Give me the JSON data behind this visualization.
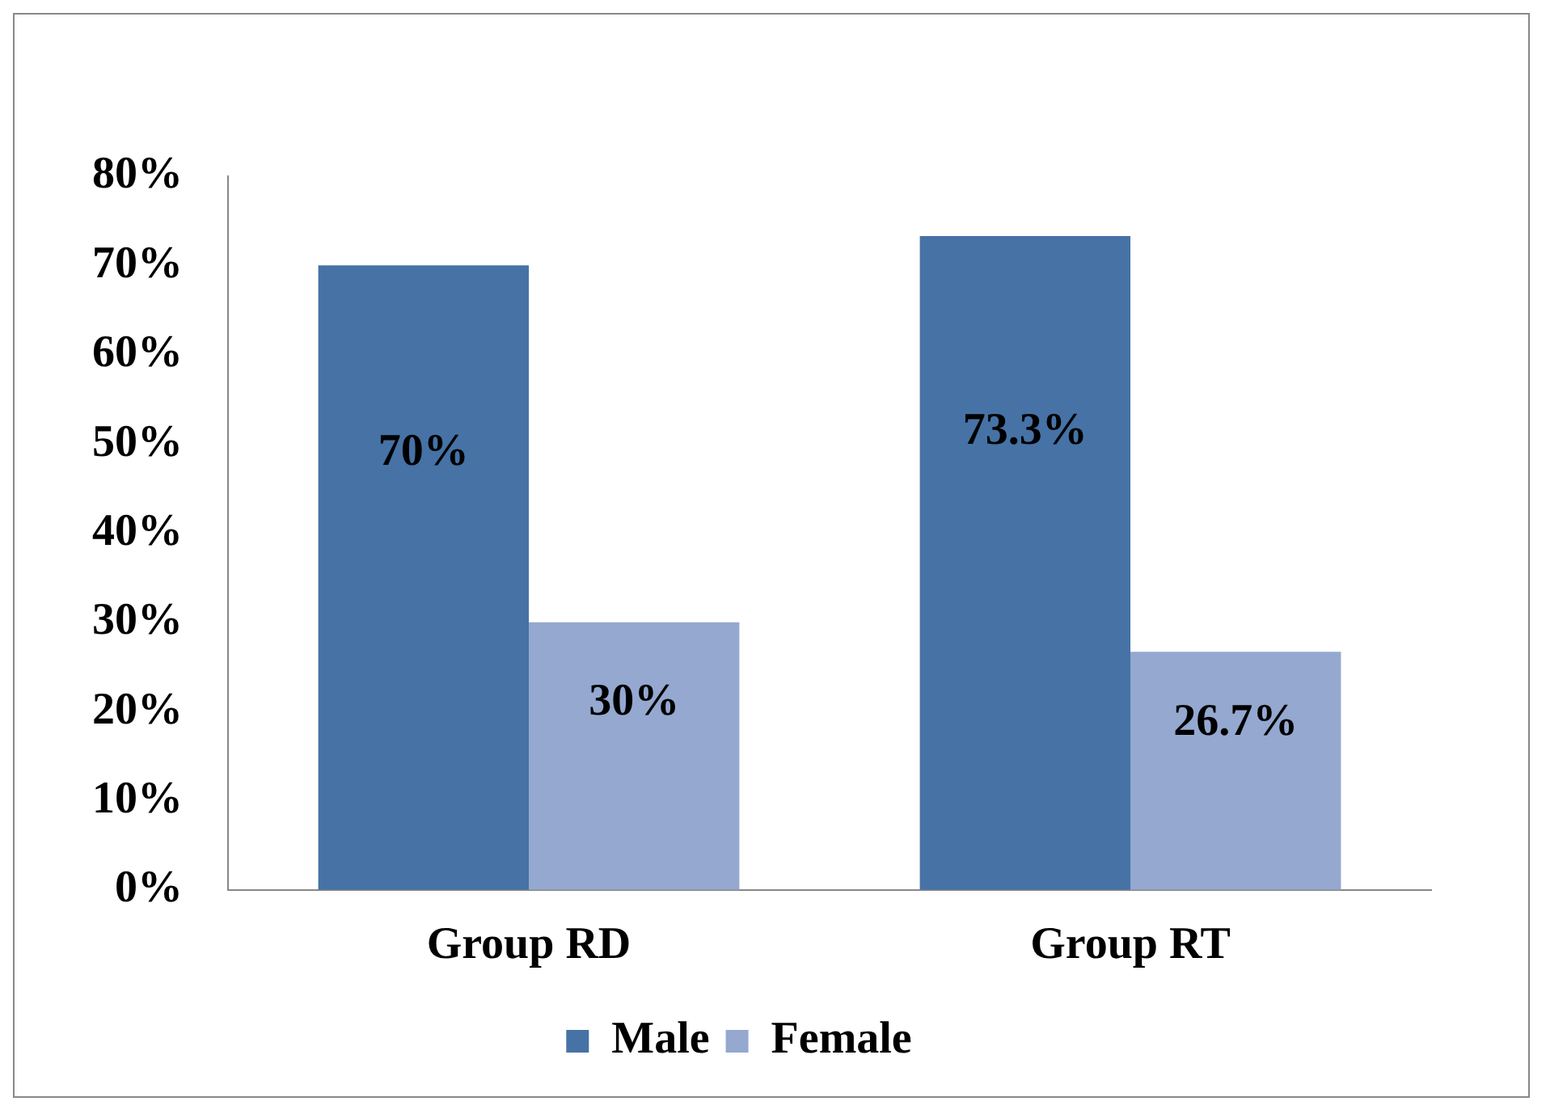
{
  "chart_data": {
    "type": "bar",
    "categories": [
      "Group RD",
      "Group RT"
    ],
    "series": [
      {
        "name": "Male",
        "color": "#4672a6",
        "values": [
          70,
          73.3
        ],
        "value_labels": [
          "70%",
          "73.3%"
        ]
      },
      {
        "name": "Female",
        "color": "#94a8d0",
        "values": [
          30,
          26.7
        ],
        "value_labels": [
          "30%",
          "26.7%"
        ]
      }
    ],
    "ylim": [
      0,
      80
    ],
    "yticks": [
      {
        "value": 0,
        "label": "0%"
      },
      {
        "value": 10,
        "label": "10%"
      },
      {
        "value": 20,
        "label": "20%"
      },
      {
        "value": 30,
        "label": "30%"
      },
      {
        "value": 40,
        "label": "40%"
      },
      {
        "value": 50,
        "label": "50%"
      },
      {
        "value": 60,
        "label": "60%"
      },
      {
        "value": 70,
        "label": "70%"
      },
      {
        "value": 80,
        "label": "80%"
      }
    ],
    "grid": false,
    "legend": "bottom"
  }
}
